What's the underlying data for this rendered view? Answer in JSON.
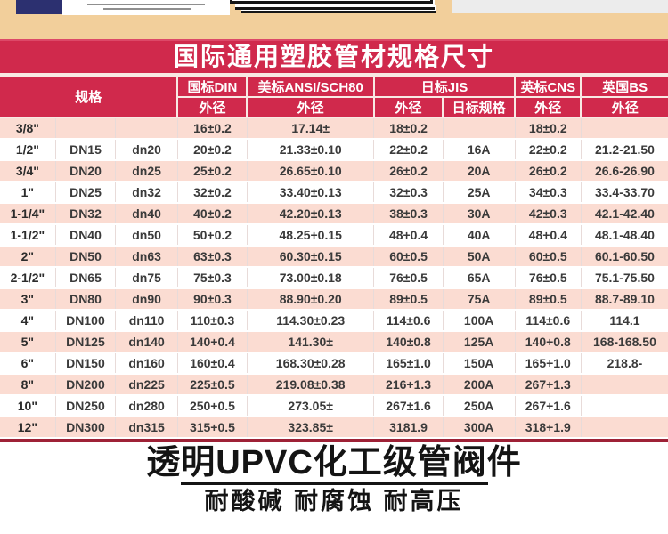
{
  "title_bar": {
    "title": "国际通用塑胶管材规格尺寸"
  },
  "table": {
    "header_groups": [
      {
        "label": "规格"
      },
      {
        "label": "国标DIN"
      },
      {
        "label": "美标ANSI/SCH80"
      },
      {
        "label": "日标JIS"
      },
      {
        "label": "英标CNS"
      },
      {
        "label": "英国BS"
      }
    ],
    "sub_headers": [
      "外径",
      "外径",
      "外径",
      "日标规格",
      "外径",
      "外径"
    ],
    "rows": [
      [
        "3/8\"",
        "",
        "",
        "16±0.2",
        "17.14±",
        "18±0.2",
        "",
        "18±0.2",
        ""
      ],
      [
        "1/2\"",
        "DN15",
        "dn20",
        "20±0.2",
        "21.33±0.10",
        "22±0.2",
        "16A",
        "22±0.2",
        "21.2-21.50"
      ],
      [
        "3/4\"",
        "DN20",
        "dn25",
        "25±0.2",
        "26.65±0.10",
        "26±0.2",
        "20A",
        "26±0.2",
        "26.6-26.90"
      ],
      [
        "1\"",
        "DN25",
        "dn32",
        "32±0.2",
        "33.40±0.13",
        "32±0.3",
        "25A",
        "34±0.3",
        "33.4-33.70"
      ],
      [
        "1-1/4\"",
        "DN32",
        "dn40",
        "40±0.2",
        "42.20±0.13",
        "38±0.3",
        "30A",
        "42±0.3",
        "42.1-42.40"
      ],
      [
        "1-1/2\"",
        "DN40",
        "dn50",
        "50+0.2",
        "48.25+0.15",
        "48+0.4",
        "40A",
        "48+0.4",
        "48.1-48.40"
      ],
      [
        "2\"",
        "DN50",
        "dn63",
        "63±0.3",
        "60.30±0.15",
        "60±0.5",
        "50A",
        "60±0.5",
        "60.1-60.50"
      ],
      [
        "2-1/2\"",
        "DN65",
        "dn75",
        "75±0.3",
        "73.00±0.18",
        "76±0.5",
        "65A",
        "76±0.5",
        "75.1-75.50"
      ],
      [
        "3\"",
        "DN80",
        "dn90",
        "90±0.3",
        "88.90±0.20",
        "89±0.5",
        "75A",
        "89±0.5",
        "88.7-89.10"
      ],
      [
        "4\"",
        "DN100",
        "dn110",
        "110±0.3",
        "114.30±0.23",
        "114±0.6",
        "100A",
        "114±0.6",
        "114.1"
      ],
      [
        "5\"",
        "DN125",
        "dn140",
        "140+0.4",
        "141.30±",
        "140±0.8",
        "125A",
        "140+0.8",
        "168-168.50"
      ],
      [
        "6\"",
        "DN150",
        "dn160",
        "160±0.4",
        "168.30±0.28",
        "165±1.0",
        "150A",
        "165+1.0",
        "218.8-"
      ],
      [
        "8\"",
        "DN200",
        "dn225",
        "225±0.5",
        "219.08±0.38",
        "216+1.3",
        "200A",
        "267+1.3",
        ""
      ],
      [
        "10\"",
        "DN250",
        "dn280",
        "250+0.5",
        "273.05±",
        "267±1.6",
        "250A",
        "267+1.6",
        ""
      ],
      [
        "12\"",
        "DN300",
        "dn315",
        "315+0.5",
        "323.85±",
        "3181.9",
        "300A",
        "318+1.9",
        ""
      ]
    ]
  },
  "footer": {
    "title": "透明UPVC化工级管阀件",
    "subtitle": "耐酸碱 耐腐蚀 耐高压"
  },
  "colors": {
    "accent_red": "#d0294c",
    "row_pink": "#fbdcd2",
    "banner_tan": "#f2cf9b",
    "table_bottom_maroon": "#9e2136"
  }
}
